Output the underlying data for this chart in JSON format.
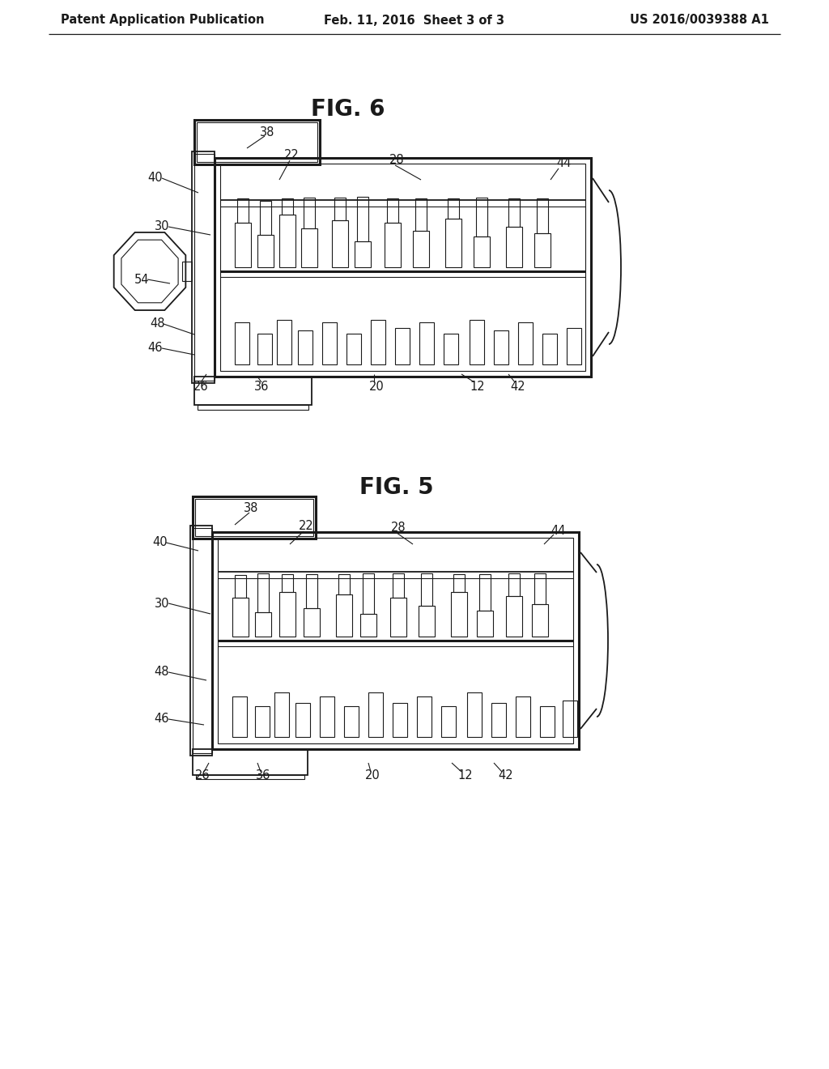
{
  "bg_color": "#ffffff",
  "text_color": "#1a1a1a",
  "line_color": "#1a1a1a",
  "header_left": "Patent Application Publication",
  "header_center": "Feb. 11, 2016  Sheet 3 of 3",
  "header_right": "US 2016/0039388 A1",
  "fig6_title": "FIG. 6",
  "fig5_title": "FIG. 5"
}
